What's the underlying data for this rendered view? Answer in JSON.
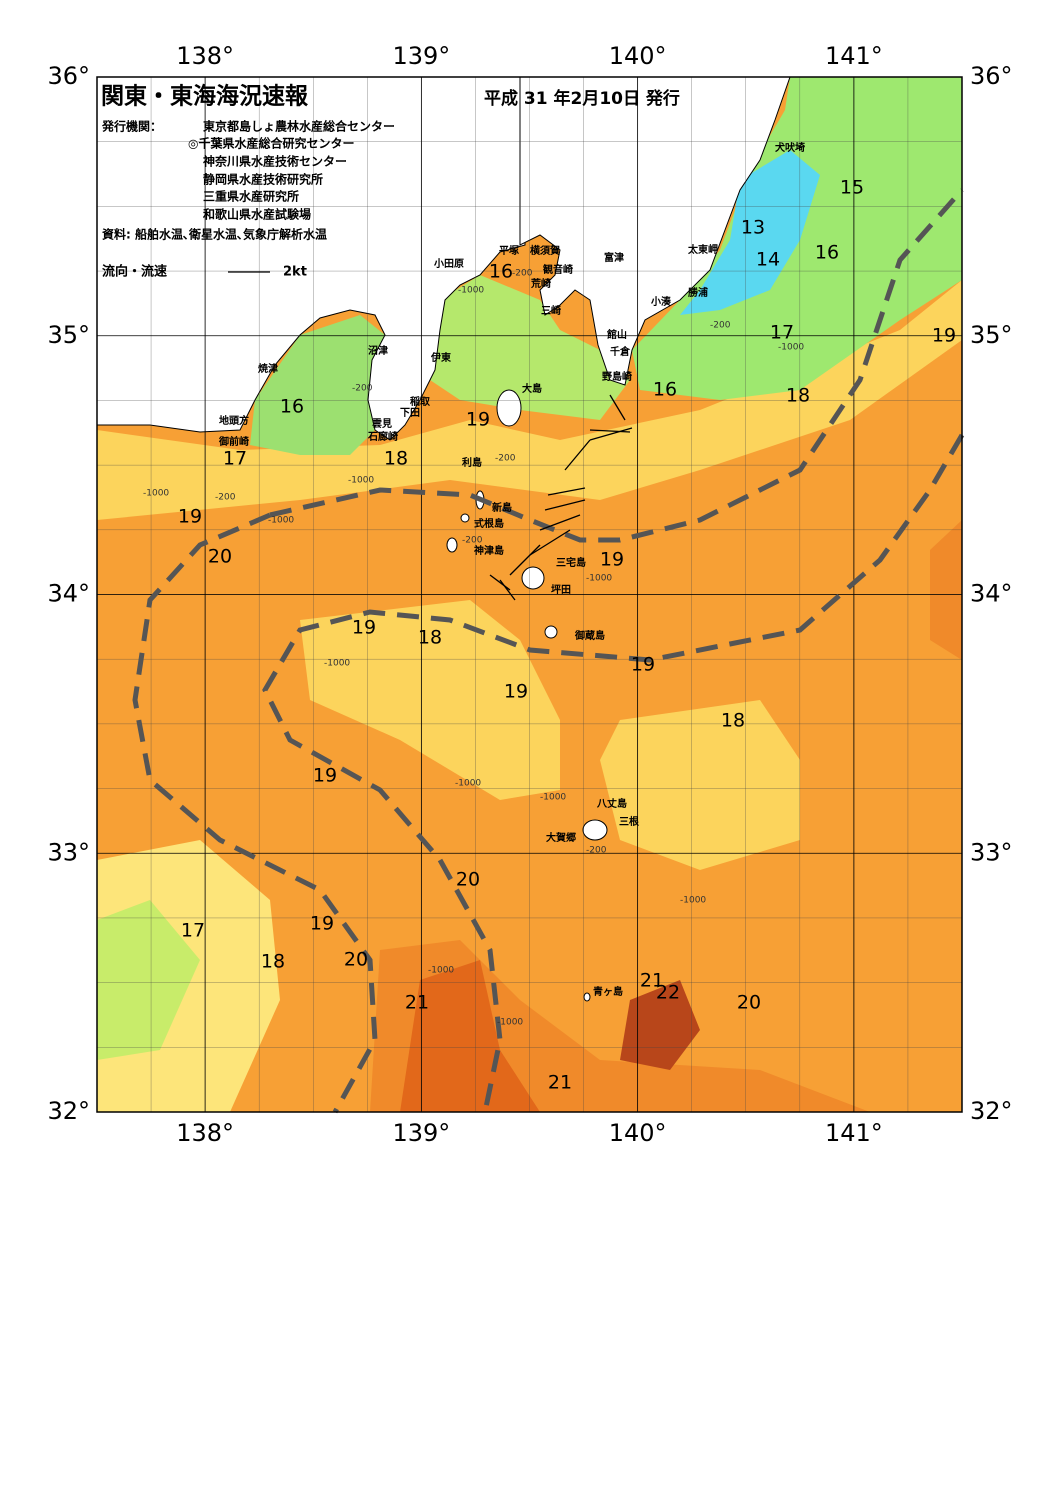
{
  "header": {
    "title": "関東・東海海況速報",
    "issue_date": "平成 31 年2月10日 発行",
    "issuers_label": "発行機関：",
    "issuers": [
      "東京都島しょ農林水産総合センター",
      "◎千葉県水産総合研究センター",
      "神奈川県水産技術センター",
      "静岡県水産技術研究所",
      "三重県水産研究所",
      "和歌山県水産試験場"
    ],
    "sources": "資料: 船舶水温､衛星水温､気象庁解析水温"
  },
  "legend": {
    "label": "流向・流速",
    "scale": "2kt"
  },
  "map": {
    "lon_range": [
      137.5,
      141.5
    ],
    "lat_range": [
      32,
      36
    ],
    "lon_ticks": [
      {
        "value": 138,
        "label": "138°"
      },
      {
        "value": 139,
        "label": "139°"
      },
      {
        "value": 140,
        "label": "140°"
      },
      {
        "value": 141,
        "label": "141°"
      }
    ],
    "lat_ticks": [
      {
        "value": 32,
        "label": "32°"
      },
      {
        "value": 33,
        "label": "33°"
      },
      {
        "value": 34,
        "label": "34°"
      },
      {
        "value": 35,
        "label": "35°"
      },
      {
        "value": 36,
        "label": "36°"
      }
    ],
    "places": [
      "犬吠埼",
      "太東岬",
      "勝浦",
      "小湊",
      "富津",
      "館山",
      "千倉",
      "野島崎",
      "横須賀",
      "観音崎",
      "荒崎",
      "三崎",
      "平塚",
      "小田原",
      "沼津",
      "伊東",
      "焼津",
      "稲取",
      "下田",
      "雲見",
      "石廊崎",
      "地頭方",
      "御前崎",
      "大島",
      "利島",
      "新島",
      "式根島",
      "神津島",
      "三宅島",
      "坪田",
      "御蔵島",
      "八丈島",
      "三根",
      "大賀郷",
      "青ヶ島"
    ],
    "isotherm_labels": [
      15,
      13,
      14,
      16,
      16,
      17,
      19,
      16,
      16,
      18,
      19,
      18,
      17,
      19,
      20,
      19,
      19,
      18,
      19,
      19,
      18,
      19,
      20,
      17,
      19,
      18,
      20,
      21,
      21,
      22,
      20,
      21
    ],
    "depth_labels": [
      -1000,
      -200,
      -200,
      -1000,
      -200,
      -1000,
      -1000,
      -200,
      -200,
      -1000,
      -1000,
      -200,
      -1000,
      -1000,
      -1000,
      -200,
      -1000,
      -1000,
      -1000
    ]
  }
}
